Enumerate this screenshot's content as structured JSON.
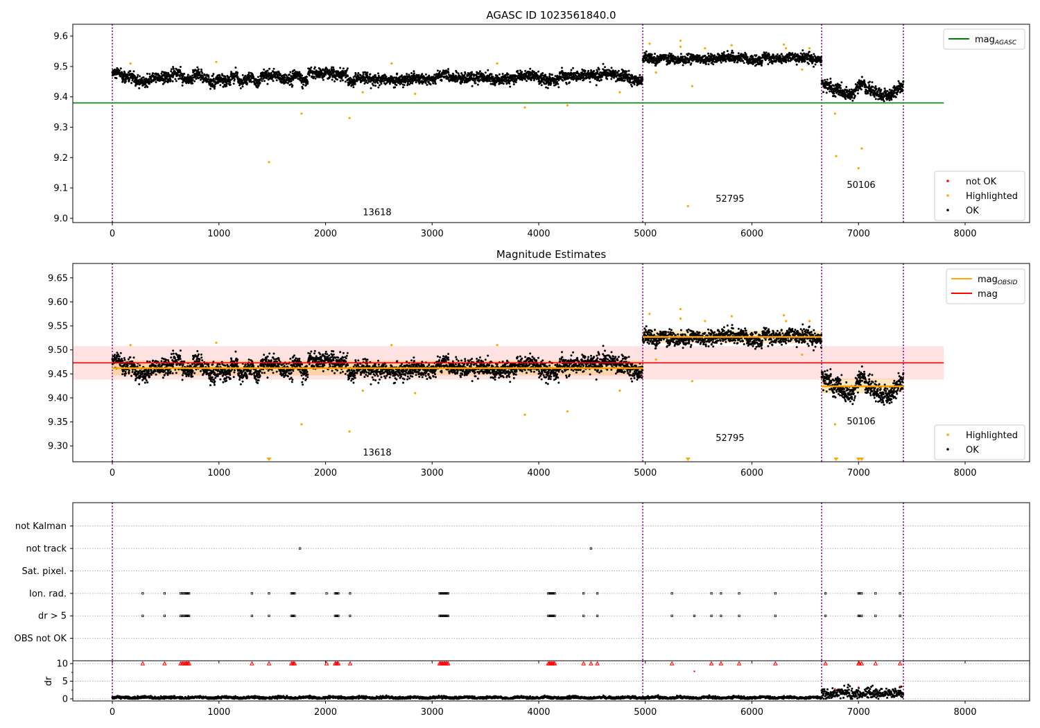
{
  "chart_data": [
    {
      "type": "scatter",
      "title": "AGASC ID 1023561840.0",
      "xlim": [
        -371,
        8605
      ],
      "ylim": [
        8.986,
        9.639
      ],
      "xticks": [
        0,
        1000,
        2000,
        3000,
        4000,
        5000,
        6000,
        7000,
        8000
      ],
      "yticks": [
        9.0,
        9.1,
        9.2,
        9.3,
        9.4,
        9.5,
        9.6
      ],
      "ytick_labels": [
        "9.0",
        "9.1",
        "9.2",
        "9.3",
        "9.4",
        "9.5",
        "9.6"
      ],
      "hlines": [
        {
          "name": "mag_AGASC",
          "value": 9.38,
          "xrange": [
            -371,
            7800
          ],
          "color": "#008000"
        }
      ],
      "legend_top": {
        "label": "mag",
        "sub": "AGASC",
        "placement": "top-right"
      },
      "legend_bottom": {
        "labels": [
          "not OK",
          "Highlighted",
          "OK"
        ],
        "colors": [
          "#ff0000",
          "#ffa500",
          "#000000"
        ],
        "placement": "lower-right"
      },
      "annotations": [
        {
          "text": "13618",
          "x": 2350,
          "y": 9.01
        },
        {
          "text": "52795",
          "x": 5660,
          "y": 9.055
        },
        {
          "text": "50106",
          "x": 6890,
          "y": 9.1
        }
      ]
    },
    {
      "type": "scatter",
      "title": "Magnitude Estimates",
      "xlim": [
        -371,
        8605
      ],
      "ylim": [
        9.267,
        9.68
      ],
      "xticks": [
        0,
        1000,
        2000,
        3000,
        4000,
        5000,
        6000,
        7000,
        8000
      ],
      "yticks": [
        9.3,
        9.35,
        9.4,
        9.45,
        9.5,
        9.55,
        9.6,
        9.65
      ],
      "ytick_labels": [
        "9.30",
        "9.35",
        "9.40",
        "9.45",
        "9.50",
        "9.55",
        "9.60",
        "9.65"
      ],
      "mag": {
        "value": 9.473,
        "band": [
          9.438,
          9.508
        ],
        "xrange": [
          -371,
          7800
        ],
        "color": "#ff0000"
      },
      "mag_obsid": [
        {
          "x": [
            0,
            4976
          ],
          "value": 9.462,
          "band": [
            9.447,
            9.478
          ]
        },
        {
          "x": [
            4976,
            6654
          ],
          "value": 9.527,
          "band": [
            9.515,
            9.54
          ]
        },
        {
          "x": [
            6654,
            7421
          ],
          "value": 9.424,
          "band": [
            9.41,
            9.44
          ]
        }
      ],
      "legend_top": {
        "labels": [
          "mag",
          "mag"
        ],
        "subs": [
          "OBSID",
          ""
        ],
        "colors": [
          "#ffa500",
          "#ff0000"
        ],
        "placement": "top-right"
      },
      "legend_bottom": {
        "labels": [
          "Highlighted",
          "OK"
        ],
        "colors": [
          "#ffa500",
          "#000000"
        ],
        "placement": "lower-right"
      },
      "annotations": [
        {
          "text": "13618",
          "x": 2350,
          "y": 9.28
        },
        {
          "text": "52795",
          "x": 5660,
          "y": 9.31
        },
        {
          "text": "50106",
          "x": 6890,
          "y": 9.345
        }
      ]
    },
    {
      "type": "scatter",
      "categories": [
        "OBS not OK",
        "dr > 5",
        "Ion. rad.",
        "Sat. pixel.",
        "not track",
        "not Kalman"
      ],
      "flags": {
        "Ion. rad.": [
          285,
          490,
          640,
          655,
          665,
          680,
          690,
          700,
          710,
          720,
          1310,
          1470,
          1680,
          1690,
          1700,
          1710,
          2010,
          2090,
          2100,
          2110,
          2120,
          2230,
          3070,
          3080,
          3090,
          3100,
          3110,
          3120,
          3130,
          3140,
          3150,
          4090,
          4100,
          4110,
          4120,
          4130,
          4140,
          4150,
          4420,
          4550,
          5250,
          5620,
          5710,
          5880,
          6220,
          6690,
          7000,
          7010,
          7030,
          7160,
          7390
        ],
        "dr > 5": [
          285,
          490,
          640,
          655,
          665,
          680,
          690,
          700,
          710,
          720,
          1310,
          1470,
          1680,
          1690,
          1700,
          1710,
          2090,
          2100,
          2110,
          2120,
          2230,
          3070,
          3080,
          3090,
          3100,
          3110,
          3120,
          3130,
          3140,
          3150,
          4090,
          4100,
          4110,
          4120,
          4130,
          4140,
          4150,
          4420,
          4550,
          5250,
          5460,
          5620,
          5710,
          5880,
          6220,
          6690,
          7000,
          7010,
          7030,
          7160,
          7390
        ],
        "not track": [
          1760,
          4490
        ]
      }
    },
    {
      "type": "scatter",
      "ylabel": "dr",
      "ylim": [
        -0.6,
        10.8
      ],
      "yticks": [
        0,
        5,
        10
      ],
      "ytick_labels": [
        "0",
        "5",
        "10"
      ],
      "xticks": [
        0,
        1000,
        2000,
        3000,
        4000,
        5000,
        6000,
        7000,
        8000
      ],
      "clipped_at_10": [
        285,
        490,
        640,
        655,
        665,
        680,
        690,
        700,
        710,
        720,
        1310,
        1470,
        1680,
        1690,
        1700,
        1710,
        2010,
        2090,
        2100,
        2110,
        2120,
        2230,
        3070,
        3080,
        3090,
        3100,
        3110,
        3120,
        3130,
        3140,
        3150,
        4090,
        4100,
        4110,
        4120,
        4130,
        4140,
        4150,
        4420,
        4490,
        4550,
        5250,
        5620,
        5710,
        5880,
        6220,
        6690,
        7000,
        7010,
        7030,
        7160,
        7390
      ],
      "red_points": [
        [
          5460,
          7.8
        ],
        [
          6780,
          2.8
        ],
        [
          7000,
          3.3
        ],
        [
          7390,
          3.5
        ]
      ],
      "segments": [
        {
          "x": [
            0,
            6654
          ],
          "mean": 0.35
        },
        {
          "x": [
            6654,
            7421
          ],
          "mean": 1.5
        }
      ]
    }
  ],
  "obs_boundaries": [
    0,
    4976,
    6654,
    7421
  ],
  "segments": [
    {
      "obsid": "13618",
      "x": [
        0,
        4976
      ],
      "mean": 9.462,
      "std": 0.013
    },
    {
      "obsid": "52795",
      "x": [
        4976,
        6654
      ],
      "mean": 9.526,
      "std": 0.011
    },
    {
      "obsid": "50106",
      "x": [
        6654,
        7421
      ],
      "mean": 9.42,
      "std": 0.014
    }
  ],
  "highlighted": [
    [
      170,
      9.51
    ],
    [
      975,
      9.515
    ],
    [
      1470,
      9.185
    ],
    [
      1775,
      9.345
    ],
    [
      2225,
      9.33
    ],
    [
      2350,
      9.415
    ],
    [
      2620,
      9.51
    ],
    [
      2840,
      9.41
    ],
    [
      3610,
      9.51
    ],
    [
      3870,
      9.365
    ],
    [
      4270,
      9.372
    ],
    [
      4760,
      9.415
    ],
    [
      5040,
      9.575
    ],
    [
      5100,
      9.48
    ],
    [
      5330,
      9.585
    ],
    [
      5330,
      9.565
    ],
    [
      5400,
      9.04
    ],
    [
      5440,
      9.435
    ],
    [
      5560,
      9.56
    ],
    [
      5810,
      9.57
    ],
    [
      6300,
      9.572
    ],
    [
      6320,
      9.56
    ],
    [
      6470,
      9.49
    ],
    [
      6540,
      9.56
    ],
    [
      6780,
      9.345
    ],
    [
      6790,
      9.205
    ],
    [
      7000,
      9.165
    ],
    [
      7030,
      9.23
    ]
  ],
  "colors": {
    "ok": "#000000",
    "highlighted": "#ffa500",
    "not_ok": "#ff0000",
    "agasc": "#008000",
    "mag": "#ff0000",
    "obsid": "#ffa500",
    "vline": "#800080"
  }
}
